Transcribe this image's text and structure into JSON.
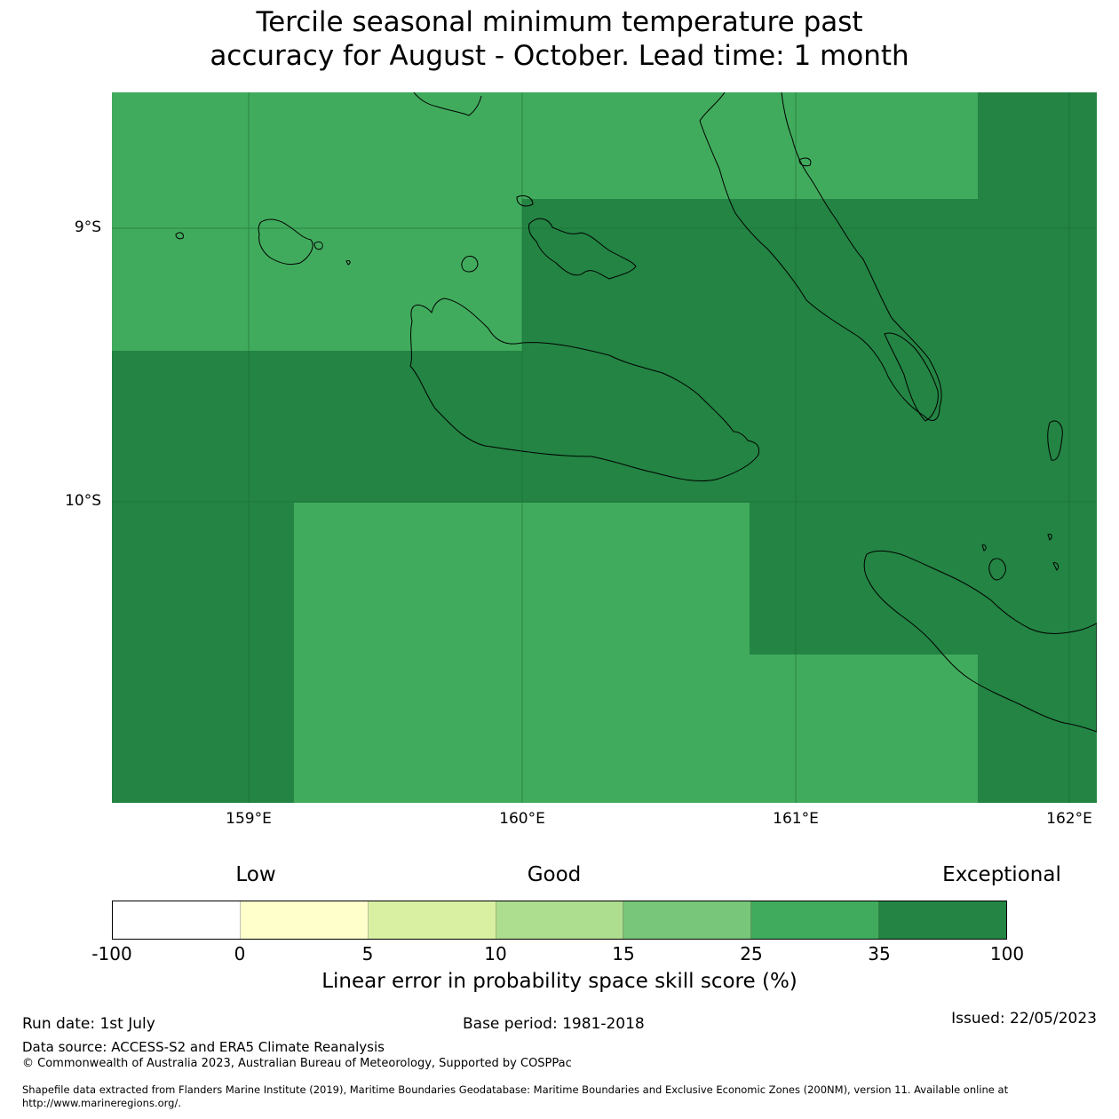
{
  "title": {
    "line1": "Tercile seasonal minimum temperature past",
    "line2": "accuracy for August - October. Lead time: 1 month"
  },
  "map": {
    "lat_labels": [
      "9°S",
      "10°S"
    ],
    "lon_labels": [
      "159°E",
      "160°E",
      "161°E",
      "162°E"
    ],
    "lon_range": [
      158.5,
      162.1
    ],
    "lat_range": [
      -8.5,
      -11.1
    ],
    "colors": {
      "band_25_35": "#41ab5d",
      "band_35_100": "#238443",
      "gridline": "#1a6e35",
      "coast": "#000000"
    }
  },
  "legend": {
    "qualitative": [
      "Low",
      "Good",
      "Exceptional"
    ],
    "colors": [
      "#ffffff",
      "#ffffcc",
      "#d9f0a3",
      "#addd8e",
      "#78c679",
      "#41ab5d",
      "#238443"
    ],
    "ticks": [
      "-100",
      "0",
      "5",
      "10",
      "15",
      "25",
      "35",
      "100"
    ],
    "label": "Linear error in probability space skill score (%)"
  },
  "footer": {
    "run_date": "Run date: 1st July",
    "base_period": "Base period: 1981-2018",
    "issued": "Issued: 22/05/2023",
    "data_source": "Data source: ACCESS-S2 and ERA5 Climate Reanalysis",
    "copyright": "© Commonwealth of Australia 2023, Australian Bureau of Meteorology, Supported by COSPPac",
    "shapefile_1": "Shapefile data extracted from Flanders Marine Institute (2019), Maritime Boundaries Geodatabase: Maritime Boundaries and Exclusive Economic Zones (200NM), version 11. Available online at",
    "shapefile_2": "http://www.marineregions.org/."
  }
}
